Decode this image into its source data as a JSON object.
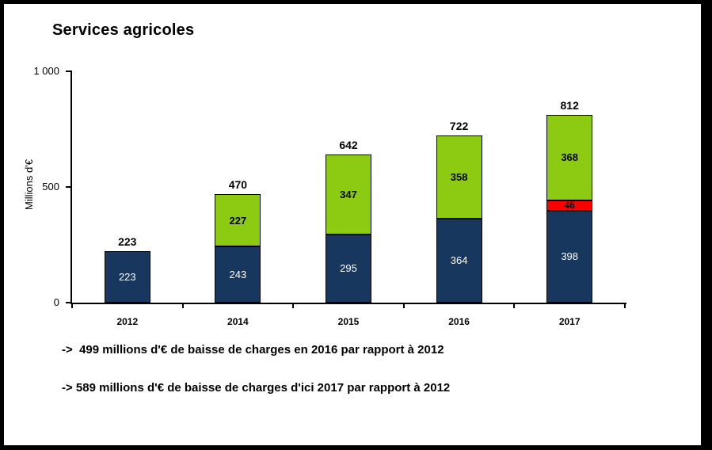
{
  "chart_data": {
    "type": "bar",
    "stacked": true,
    "title": "Services agricoles",
    "ylabel": "Millions d'€",
    "xlabel": "",
    "categories": [
      "2012",
      "2014",
      "2015",
      "2016",
      "2017"
    ],
    "series": [
      {
        "color": "#17375E",
        "text_color": "#FFFFFF",
        "bold_labels": false,
        "values": [
          223,
          243,
          295,
          364,
          398
        ]
      },
      {
        "color": "#FF0000",
        "text_color": "#000000",
        "bold_labels": true,
        "values": [
          0,
          0,
          0,
          0,
          46
        ]
      },
      {
        "color": "#8CCB12",
        "text_color": "#000000",
        "bold_labels": true,
        "values": [
          0,
          227,
          347,
          358,
          368
        ]
      }
    ],
    "totals": [
      223,
      470,
      642,
      722,
      812
    ],
    "ylim": [
      0,
      1000
    ],
    "yticks": [
      {
        "value": 0,
        "label": "0"
      },
      {
        "value": 500,
        "label": "500"
      },
      {
        "value": 1000,
        "label": "1 000"
      }
    ],
    "grid": false,
    "legend": "none"
  },
  "annotations": [
    "->  499 millions d'€ de baisse de charges en 2016 par rapport à 2012",
    "-> 589 millions d'€ de baisse de charges d'ici 2017 par rapport à 2012"
  ]
}
